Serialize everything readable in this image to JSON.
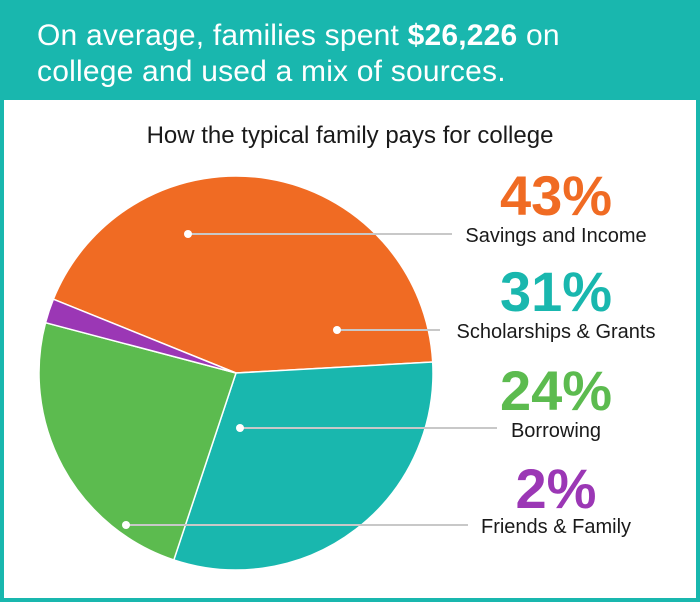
{
  "header": {
    "line1_pre": "On average, families spent ",
    "line1_amount": "$26,226",
    "line1_post": " on",
    "line2": "college and used a mix of sources."
  },
  "colors": {
    "teal": "#19b7ae",
    "orange": "#f06b23",
    "green": "#5cbb4f",
    "purple": "#9b37b5"
  },
  "chart_data": {
    "type": "pie",
    "title": "How the typical family pays for college",
    "slices": [
      {
        "label": "Savings and Income",
        "value": 43,
        "display": "43%",
        "color": "#f06b23"
      },
      {
        "label": "Scholarships & Grants",
        "value": 31,
        "display": "31%",
        "color": "#19b7ae"
      },
      {
        "label": "Borrowing",
        "value": 24,
        "display": "24%",
        "color": "#5cbb4f"
      },
      {
        "label": "Friends & Family",
        "value": 2,
        "display": "2%",
        "color": "#9b37b5"
      }
    ]
  }
}
